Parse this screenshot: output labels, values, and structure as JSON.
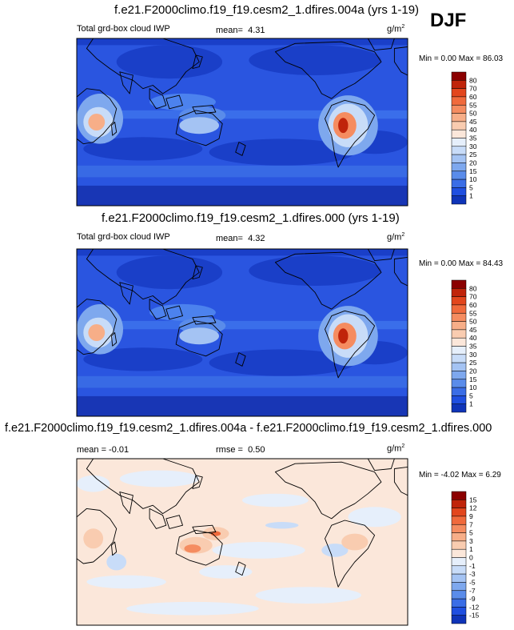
{
  "season": "DJF",
  "panels": [
    {
      "title": "f.e21.F2000climo.f19_f19.cesm2_1.dfires.004a (yrs 1-19)",
      "left_label": "Total grd-box cloud IWP",
      "stat_label": "mean=",
      "stat_value": "4.31",
      "units": "g/m",
      "units_sup": "2",
      "minmax": "Min =  0.00 Max =  86.03"
    },
    {
      "title": "f.e21.F2000climo.f19_f19.cesm2_1.dfires.000 (yrs 1-19)",
      "left_label": "Total grd-box cloud IWP",
      "stat_label": "mean=",
      "stat_value": "4.32",
      "units": "g/m",
      "units_sup": "2",
      "minmax": "Min =  0.00 Max =  84.43"
    },
    {
      "title": "f.e21.F2000climo.f19_f19.cesm2_1.dfires.004a - f.e21.F2000climo.f19_f19.cesm2_1.dfires.000",
      "left_label": "mean = -0.01",
      "stat_label": "rmse =",
      "stat_value": "0.50",
      "units": "g/m",
      "units_sup": "2",
      "minmax": "Min = -4.02 Max =  6.29"
    }
  ],
  "chart_data": [
    {
      "type": "heatmap",
      "title": "f.e21.F2000climo.f19_f19.cesm2_1.dfires.004a (yrs 1-19)",
      "variable": "Total grd-box cloud IWP",
      "units": "g/m2",
      "mean": 4.31,
      "min": 0.0,
      "max": 86.03,
      "colorbar_levels": [
        "80",
        "70",
        "60",
        "55",
        "50",
        "45",
        "40",
        "35",
        "30",
        "25",
        "20",
        "15",
        "10",
        "5",
        "1"
      ],
      "colorbar_colors": [
        "#8b0000",
        "#c0240a",
        "#e2461d",
        "#f06a3c",
        "#f58c60",
        "#f7ae88",
        "#f9ccb0",
        "#fbe7da",
        "#e6effb",
        "#c8dcf8",
        "#a4c3f3",
        "#7ea8ee",
        "#5a8cea",
        "#3a6de6",
        "#1f4fe0",
        "#0f34b8"
      ]
    },
    {
      "type": "heatmap",
      "title": "f.e21.F2000climo.f19_f19.cesm2_1.dfires.000 (yrs 1-19)",
      "variable": "Total grd-box cloud IWP",
      "units": "g/m2",
      "mean": 4.32,
      "min": 0.0,
      "max": 84.43,
      "colorbar_levels": [
        "80",
        "70",
        "60",
        "55",
        "50",
        "45",
        "40",
        "35",
        "30",
        "25",
        "20",
        "15",
        "10",
        "5",
        "1"
      ],
      "colorbar_colors": [
        "#8b0000",
        "#c0240a",
        "#e2461d",
        "#f06a3c",
        "#f58c60",
        "#f7ae88",
        "#f9ccb0",
        "#fbe7da",
        "#e6effb",
        "#c8dcf8",
        "#a4c3f3",
        "#7ea8ee",
        "#5a8cea",
        "#3a6de6",
        "#1f4fe0",
        "#0f34b8"
      ]
    },
    {
      "type": "heatmap",
      "title": "f.e21.F2000climo.f19_f19.cesm2_1.dfires.004a - f.e21.F2000climo.f19_f19.cesm2_1.dfires.000",
      "units": "g/m2",
      "mean": -0.01,
      "rmse": 0.5,
      "min": -4.02,
      "max": 6.29,
      "colorbar_levels": [
        "15",
        "12",
        "9",
        "7",
        "5",
        "3",
        "1",
        "0",
        "-1",
        "-3",
        "-5",
        "-7",
        "-9",
        "-12",
        "-15"
      ],
      "colorbar_colors": [
        "#8b0000",
        "#c0240a",
        "#e2461d",
        "#f06a3c",
        "#f58c60",
        "#f7ae88",
        "#f9ccb0",
        "#fbe7da",
        "#e6effb",
        "#c8dcf8",
        "#a4c3f3",
        "#7ea8ee",
        "#5a8cea",
        "#3a6de6",
        "#1f4fe0",
        "#0f34b8"
      ]
    }
  ]
}
